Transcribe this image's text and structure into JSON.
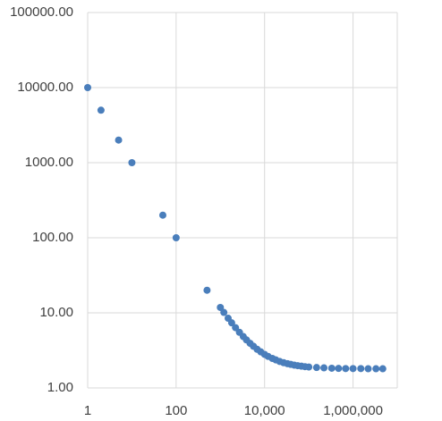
{
  "chart_data": {
    "type": "scatter",
    "x": [
      1,
      2,
      5,
      10,
      50,
      100,
      500,
      1000,
      1200,
      1500,
      1800,
      2200,
      2700,
      3300,
      3900,
      4700,
      5600,
      6800,
      8200,
      10000,
      12000,
      15000,
      18000,
      22000,
      27000,
      33000,
      39000,
      47000,
      56000,
      68000,
      82000,
      100000,
      150000,
      220000,
      330000,
      470000,
      680000,
      1000000,
      1500000,
      2200000,
      3300000,
      4700000
    ],
    "values": [
      10000,
      5000,
      2000,
      1000,
      200,
      100,
      20,
      11.8,
      10.13,
      8.47,
      7.36,
      6.35,
      5.5,
      4.83,
      4.36,
      3.93,
      3.59,
      3.27,
      3.02,
      2.8,
      2.63,
      2.47,
      2.36,
      2.25,
      2.17,
      2.1,
      2.06,
      2.01,
      1.98,
      1.95,
      1.92,
      1.9,
      1.87,
      1.85,
      1.83,
      1.82,
      1.81,
      1.81,
      1.81,
      1.8,
      1.8,
      1.8
    ],
    "color": "#4a7ebb",
    "xscale": "log",
    "yscale": "log",
    "xlim": [
      1,
      10000000
    ],
    "xticks": [
      1,
      100,
      {
        "value": 10000,
        "label": "10,000"
      },
      {
        "value": 1000000,
        "label": "1,000,000"
      }
    ],
    "ylim": [
      1,
      100000
    ],
    "yticks": [
      {
        "value": 1,
        "label": "1.00"
      },
      {
        "value": 10,
        "label": "10.00"
      },
      {
        "value": 100,
        "label": "100.00"
      },
      {
        "value": 1000,
        "label": "1000.00"
      },
      {
        "value": 10000,
        "label": "10000.00"
      },
      {
        "value": 100000,
        "label": "100000.00"
      }
    ],
    "grid": true
  }
}
